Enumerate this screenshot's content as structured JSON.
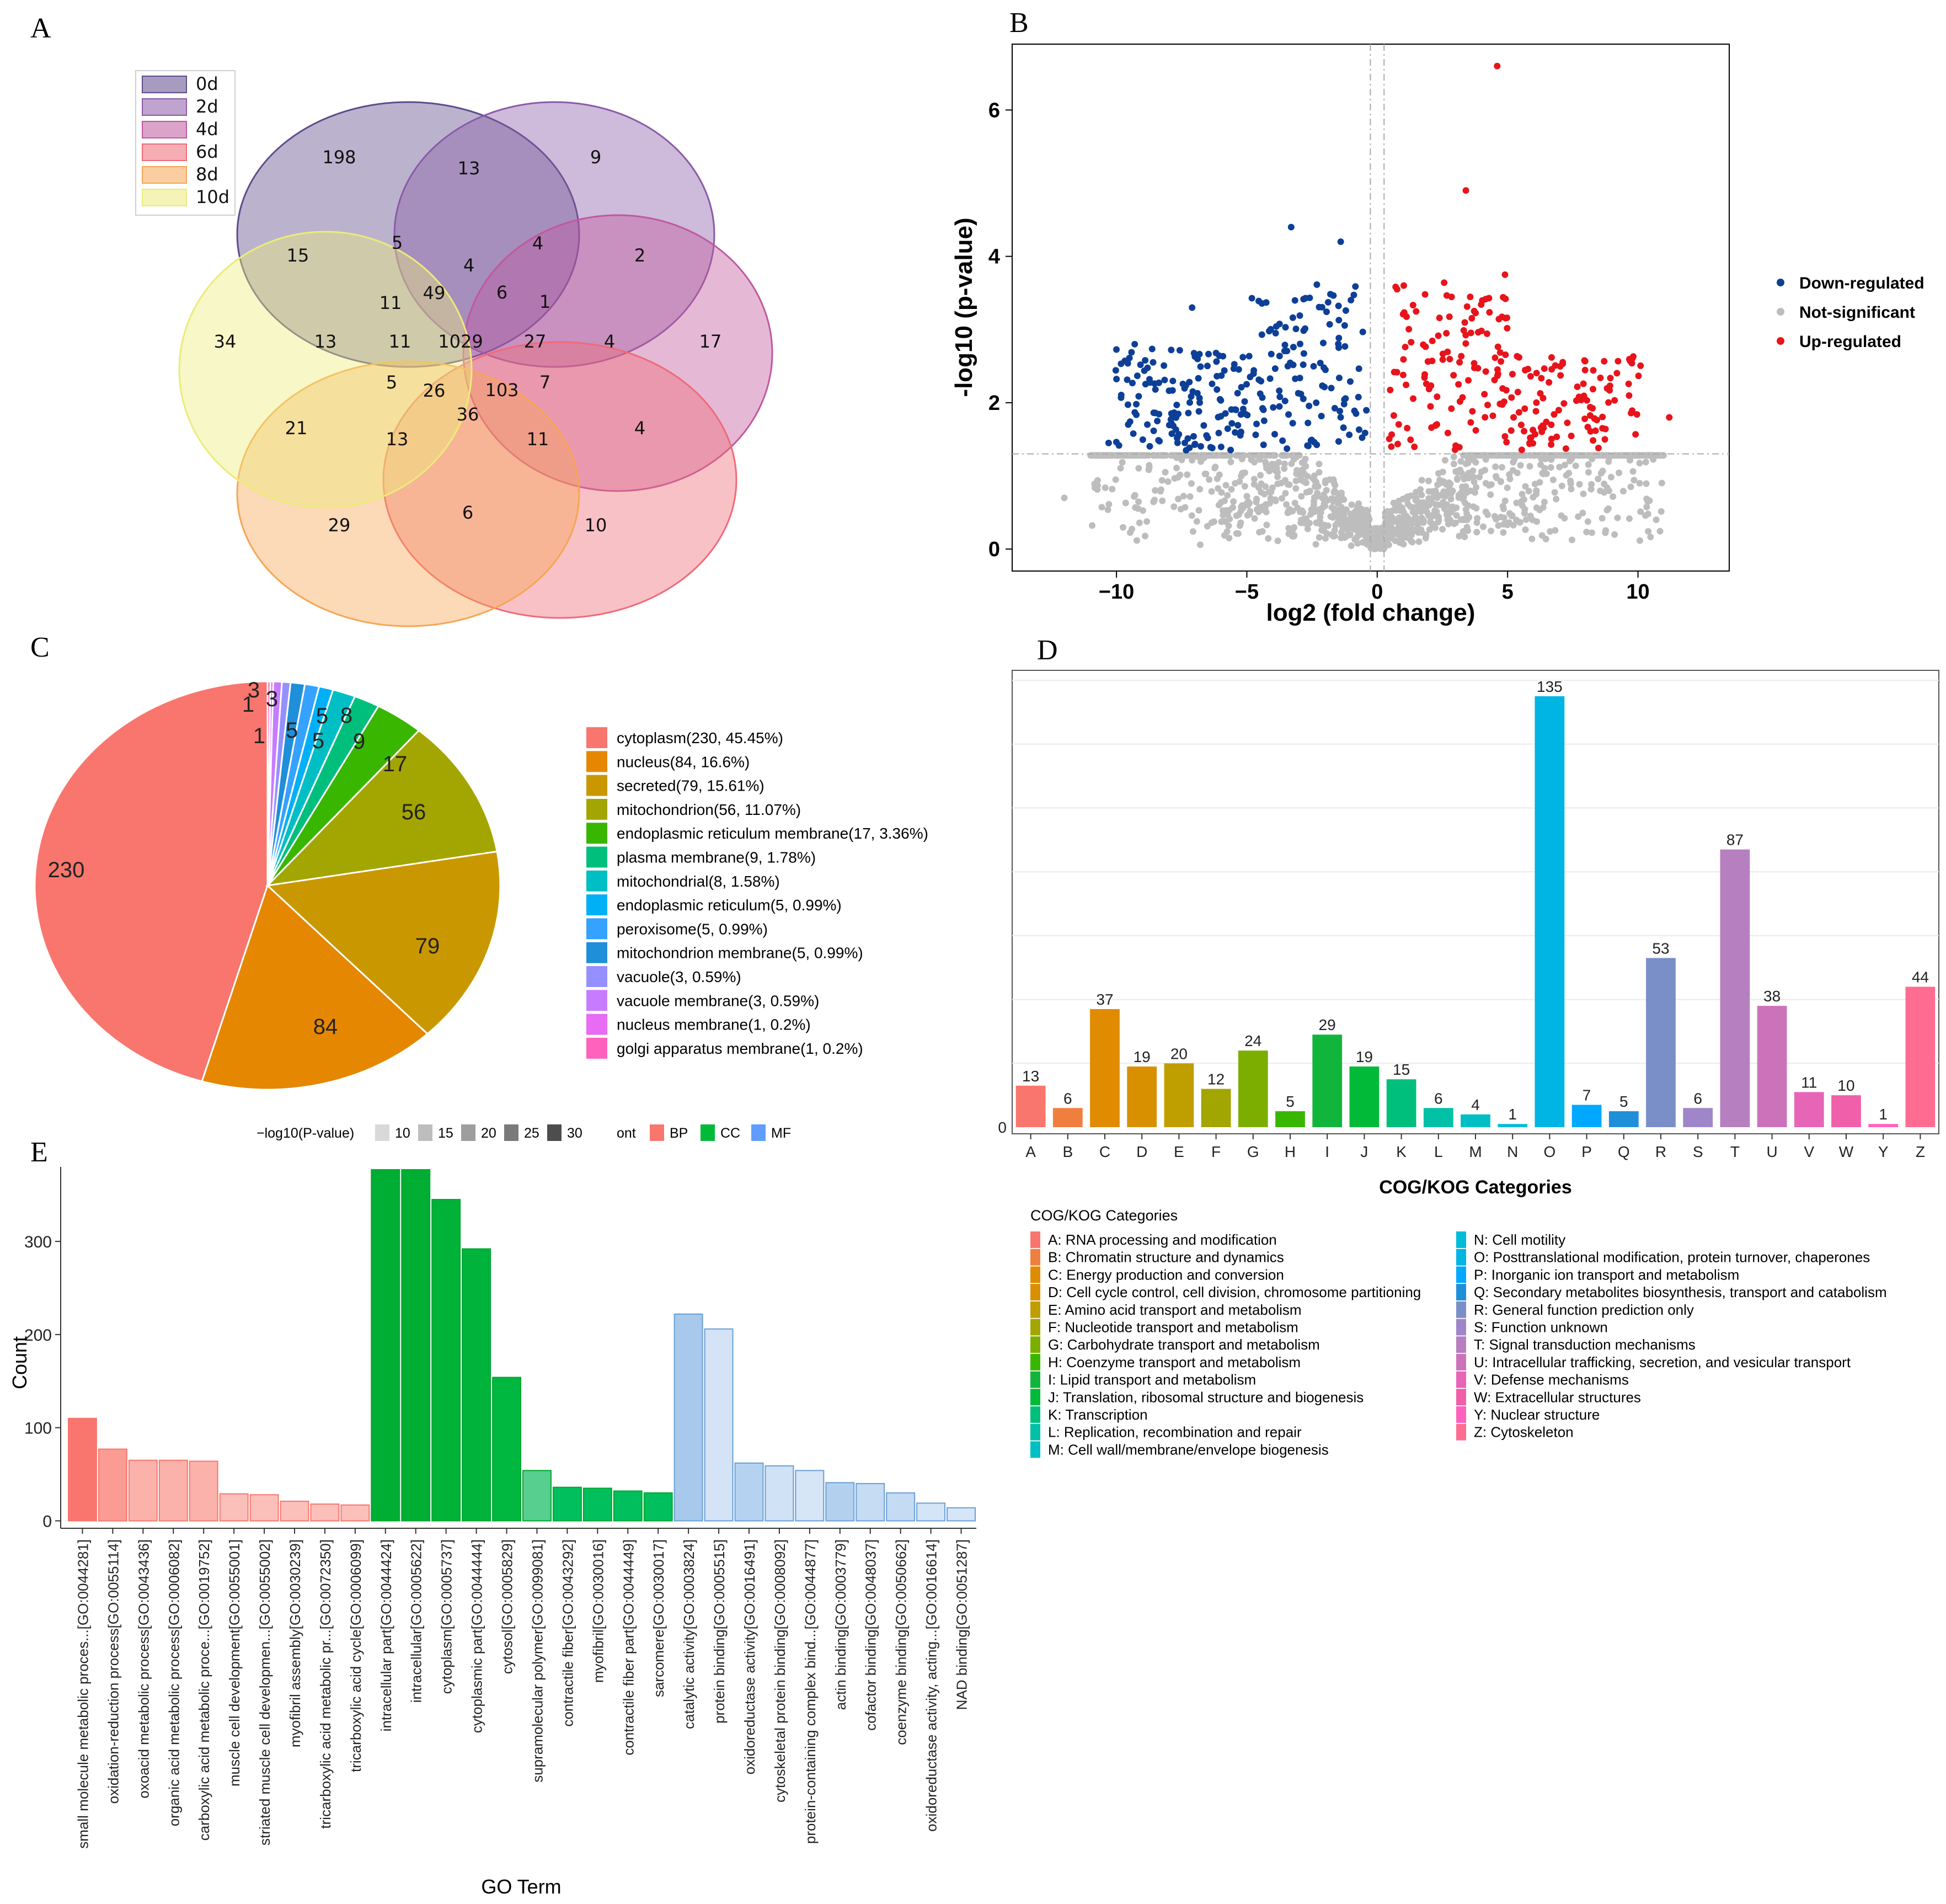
{
  "panel_labels": [
    "A",
    "B",
    "C",
    "D",
    "E"
  ],
  "chart_data": [
    {
      "panel": "A",
      "type": "venn",
      "sets": [
        {
          "name": "0d",
          "color": "#5e4b8b"
        },
        {
          "name": "2d",
          "color": "#8a5aa8"
        },
        {
          "name": "4d",
          "color": "#c0589e"
        },
        {
          "name": "6d",
          "color": "#ef6b78"
        },
        {
          "name": "8d",
          "color": "#f7a553"
        },
        {
          "name": "10d",
          "color": "#eceb7a"
        }
      ],
      "region_values": [
        "198",
        "13",
        "9",
        "15",
        "5",
        "4",
        "2",
        "4",
        "49",
        "6",
        "1",
        "11",
        "34",
        "13",
        "11",
        "1029",
        "27",
        "4",
        "17",
        "5",
        "26",
        "103",
        "7",
        "36",
        "21",
        "13",
        "11",
        "4",
        "29",
        "6",
        "10"
      ]
    },
    {
      "panel": "B",
      "type": "scatter",
      "xlabel": "log2 (fold change)",
      "ylabel": "-log10 (p-value)",
      "xlim": [
        -14,
        13.5
      ],
      "ylim": [
        -0.3,
        6.9
      ],
      "xticks": [
        -10,
        -5,
        0,
        5,
        10
      ],
      "yticks": [
        0,
        2,
        4,
        6
      ],
      "thresholds": {
        "x": [
          -0.263,
          0.263
        ],
        "y": 1.301
      },
      "legend": [
        {
          "label": "Down-regulated",
          "color": "#0d3f97"
        },
        {
          "label": "Not-significant",
          "color": "#bdbdbd"
        },
        {
          "label": "Up-regulated",
          "color": "#e8141b"
        }
      ],
      "highlight_points": [
        [
          4.6,
          6.6
        ],
        [
          -3.3,
          4.4
        ],
        [
          -1.4,
          4.2
        ],
        [
          3.4,
          4.9
        ],
        [
          4.9,
          3.75
        ],
        [
          -7.1,
          3.3
        ],
        [
          -9.3,
          2.8
        ],
        [
          -10.3,
          1.45
        ],
        [
          11.2,
          1.8
        ],
        [
          -12,
          0.7
        ],
        [
          10.7,
          0.4
        ]
      ]
    },
    {
      "panel": "C",
      "type": "pie",
      "categories": [
        "cytoplasm(230, 45.45%)",
        "nucleus(84, 16.6%)",
        "secreted(79, 15.61%)",
        "mitochondrion(56, 11.07%)",
        "endoplasmic reticulum membrane(17, 3.36%)",
        "plasma membrane(9, 1.78%)",
        "mitochondrial(8, 1.58%)",
        "endoplasmic reticulum(5, 0.99%)",
        "peroxisome(5, 0.99%)",
        "mitochondrion membrane(5, 0.99%)",
        "vacuole(3, 0.59%)",
        "vacuole membrane(3, 0.59%)",
        "nucleus membrane(1, 0.2%)",
        "golgi apparatus membrane(1, 0.2%)"
      ],
      "values": [
        230,
        84,
        79,
        56,
        17,
        9,
        8,
        5,
        5,
        5,
        3,
        3,
        1,
        1
      ],
      "slice_labels": [
        "230",
        "84",
        "79",
        "56",
        "17",
        "9",
        "8",
        "5",
        "5",
        "5",
        "3",
        "3",
        "1",
        "1"
      ],
      "colors": [
        "#f8766d",
        "#e58700",
        "#c99800",
        "#a3a500",
        "#39b600",
        "#00bf7d",
        "#00bfc4",
        "#00b0f6",
        "#35a2ff",
        "#1f8fd9",
        "#9590ff",
        "#c77cff",
        "#e76bf3",
        "#ff62bc"
      ]
    },
    {
      "panel": "D",
      "type": "bar",
      "xlabel": "COG/KOG Categories",
      "ylabel": "",
      "ylim": [
        0,
        140
      ],
      "ytick_label": "0",
      "categories": [
        "A",
        "B",
        "C",
        "D",
        "E",
        "F",
        "G",
        "H",
        "I",
        "J",
        "K",
        "L",
        "M",
        "N",
        "O",
        "P",
        "Q",
        "R",
        "S",
        "T",
        "U",
        "V",
        "W",
        "Y",
        "Z"
      ],
      "values": [
        13,
        6,
        37,
        19,
        20,
        12,
        24,
        5,
        29,
        19,
        15,
        6,
        4,
        1,
        135,
        7,
        5,
        53,
        6,
        87,
        38,
        11,
        10,
        1,
        44
      ],
      "value_labels": [
        "13",
        "6",
        "37",
        "19",
        "20",
        "12",
        "24",
        "5",
        "29",
        "19",
        "15",
        "6",
        "4",
        "1",
        "135",
        "7",
        "5",
        "53",
        "6",
        "87",
        "38",
        "11",
        "10",
        "1",
        "44"
      ],
      "colors": [
        "#f8766d",
        "#f07f3f",
        "#e08b00",
        "#d89000",
        "#bf9e00",
        "#a3a500",
        "#7cae00",
        "#39b600",
        "#12b53c",
        "#00ba38",
        "#00bf7d",
        "#00c0a5",
        "#00bfc4",
        "#00bcd8",
        "#00b4e4",
        "#00a9ff",
        "#1f8fd9",
        "#7a8fc7",
        "#9f86c9",
        "#b67fbf",
        "#cc72bb",
        "#e765b6",
        "#f05fa9",
        "#ff62bc",
        "#ff6c91"
      ],
      "legend_title": "COG/KOG Categories",
      "legend_items": [
        "A: RNA processing and modification",
        "B: Chromatin structure and dynamics",
        "C: Energy production and conversion",
        "D: Cell cycle control, cell division, chromosome partitioning",
        "E: Amino acid transport and metabolism",
        "F: Nucleotide transport and metabolism",
        "G: Carbohydrate transport and metabolism",
        "H: Coenzyme transport and metabolism",
        "I: Lipid transport and metabolism",
        "J: Translation, ribosomal structure and biogenesis",
        "K: Transcription",
        "L: Replication, recombination and repair",
        "M: Cell wall/membrane/envelope biogenesis",
        "N: Cell motility",
        "O: Posttranslational modification, protein turnover, chaperones",
        "P: Inorganic ion transport and metabolism",
        "Q: Secondary metabolites biosynthesis, transport and catabolism",
        "R: General function prediction only",
        "S: Function unknown",
        "T: Signal transduction mechanisms",
        "U: Intracellular trafficking, secretion, and vesicular transport",
        "V: Defense mechanisms",
        "W: Extracellular structures",
        "Y: Nuclear structure",
        "Z: Cytoskeleton"
      ]
    },
    {
      "panel": "E",
      "type": "bar",
      "xlabel": "GO Term",
      "ylabel": "Count",
      "ylim": [
        -8,
        380
      ],
      "yticks": [
        0,
        100,
        200,
        300
      ],
      "legend_pvalue_title": "−log10(P-value)",
      "legend_pvalue_levels": [
        "10",
        "15",
        "20",
        "25",
        "30"
      ],
      "legend_ont_title": "ont",
      "legend_ont": [
        {
          "label": "BP",
          "color": "#f8766d"
        },
        {
          "label": "CC",
          "color": "#00ba38"
        },
        {
          "label": "MF",
          "color": "#619cff"
        }
      ],
      "categories": [
        "small molecule metabolic proces...[GO:0044281]",
        "oxidation-reduction process[GO:0055114]",
        "oxoacid metabolic process[GO:0043436]",
        "organic acid metabolic process[GO:0006082]",
        "carboxylic acid metabolic proce...[GO:0019752]",
        "muscle cell development[GO:0055001]",
        "striated muscle cell developmen...[GO:0055002]",
        "myofibril assembly[GO:0030239]",
        "tricarboxylic acid metabolic pr...[GO:0072350]",
        "tricarboxylic acid cycle[GO:0006099]",
        "intracellular part[GO:0044424]",
        "intracellular[GO:0005622]",
        "cytoplasm[GO:0005737]",
        "cytoplasmic part[GO:0044444]",
        "cytosol[GO:0005829]",
        "supramolecular polymer[GO:0099081]",
        "contractile fiber[GO:0043292]",
        "myofibril[GO:0030016]",
        "contractile fiber part[GO:0044449]",
        "sarcomere[GO:0030017]",
        "catalytic activity[GO:0003824]",
        "protein binding[GO:0005515]",
        "oxidoreductase activity[GO:0016491]",
        "cytoskeletal protein binding[GO:0008092]",
        "protein-containing complex bind...[GO:0044877]",
        "actin binding[GO:0003779]",
        "cofactor binding[GO:0048037]",
        "coenzyme binding[GO:0050662]",
        "oxidoreductase activity, acting...[GO:0016614]",
        "NAD binding[GO:0051287]"
      ],
      "values": [
        110,
        77,
        65,
        65,
        64,
        29,
        28,
        21,
        18,
        17,
        377,
        377,
        345,
        292,
        154,
        54,
        36,
        35,
        32,
        30,
        222,
        206,
        62,
        59,
        54,
        41,
        40,
        30,
        19,
        14
      ],
      "ont": [
        "BP",
        "BP",
        "BP",
        "BP",
        "BP",
        "BP",
        "BP",
        "BP",
        "BP",
        "BP",
        "CC",
        "CC",
        "CC",
        "CC",
        "CC",
        "CC",
        "CC",
        "CC",
        "CC",
        "CC",
        "MF",
        "MF",
        "MF",
        "MF",
        "MF",
        "MF",
        "MF",
        "MF",
        "MF",
        "MF"
      ],
      "colors": [
        "#f8766d",
        "#fa9c94",
        "#fbb2ab",
        "#fbb2ab",
        "#fbb2ab",
        "#fcc0ba",
        "#fcc0ba",
        "#fcc0ba",
        "#fcc0ba",
        "#fcc0ba",
        "#00ae34",
        "#00ae34",
        "#00b237",
        "#00b33a",
        "#00b740",
        "#57cf8f",
        "#00bf5c",
        "#00bf5c",
        "#00bf5c",
        "#00bf5c",
        "#a8c9ec",
        "#d4e3f6",
        "#b5d3f0",
        "#d0e2f6",
        "#d6e6f7",
        "#b3d1ef",
        "#c6dcf3",
        "#c4dbf3",
        "#d4e5f7",
        "#d6e6f7"
      ]
    }
  ]
}
